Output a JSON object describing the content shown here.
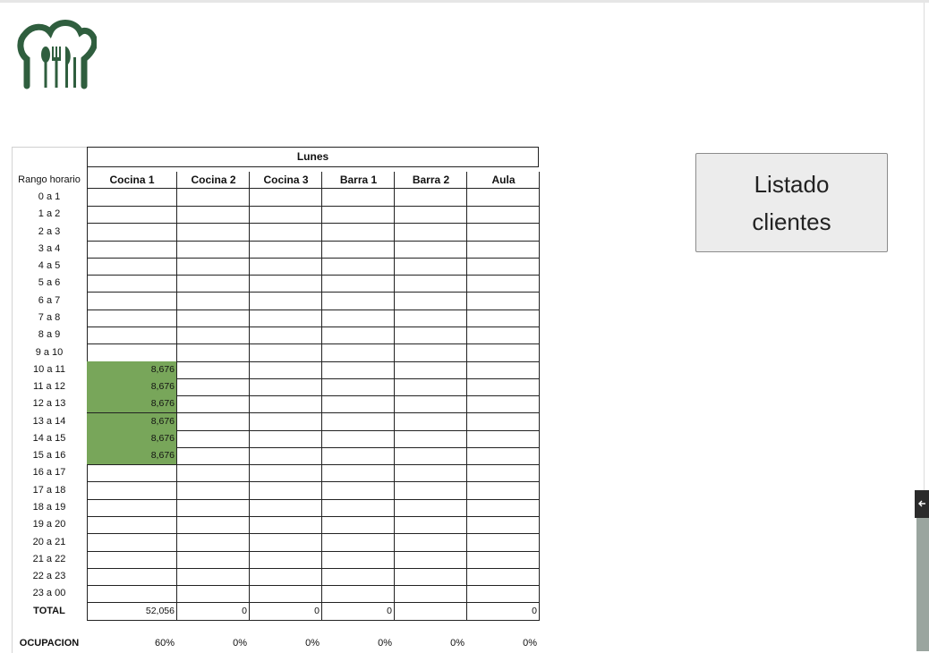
{
  "logo": {
    "icon": "chef-hat-cutlery-icon",
    "color": "#2f5e3e"
  },
  "sheet": {
    "day_header": "Lunes",
    "row_header": "Rango horario",
    "columns": [
      "Cocina 1",
      "Cocina 2",
      "Cocina 3",
      "Barra 1",
      "Barra 2",
      "Aula"
    ],
    "rows": [
      {
        "label": "0 a 1",
        "values": [
          "",
          "",
          "",
          "",
          "",
          ""
        ]
      },
      {
        "label": "1 a 2",
        "values": [
          "",
          "",
          "",
          "",
          "",
          ""
        ]
      },
      {
        "label": "2 a 3",
        "values": [
          "",
          "",
          "",
          "",
          "",
          ""
        ]
      },
      {
        "label": "3 a 4",
        "values": [
          "",
          "",
          "",
          "",
          "",
          ""
        ]
      },
      {
        "label": "4 a 5",
        "values": [
          "",
          "",
          "",
          "",
          "",
          ""
        ]
      },
      {
        "label": "5 a 6",
        "values": [
          "",
          "",
          "",
          "",
          "",
          ""
        ]
      },
      {
        "label": "6 a 7",
        "values": [
          "",
          "",
          "",
          "",
          "",
          ""
        ]
      },
      {
        "label": "7 a 8",
        "values": [
          "",
          "",
          "",
          "",
          "",
          ""
        ]
      },
      {
        "label": "8 a 9",
        "values": [
          "",
          "",
          "",
          "",
          "",
          ""
        ]
      },
      {
        "label": "9 a 10",
        "values": [
          "",
          "",
          "",
          "",
          "",
          ""
        ]
      },
      {
        "label": "10 a 11",
        "values": [
          "8,676",
          "",
          "",
          "",
          "",
          ""
        ]
      },
      {
        "label": "11 a 12",
        "values": [
          "8,676",
          "",
          "",
          "",
          "",
          ""
        ]
      },
      {
        "label": "12 a 13",
        "values": [
          "8,676",
          "",
          "",
          "",
          "",
          ""
        ]
      },
      {
        "label": "13 a 14",
        "values": [
          "8,676",
          "",
          "",
          "",
          "",
          ""
        ]
      },
      {
        "label": "14 a 15",
        "values": [
          "8,676",
          "",
          "",
          "",
          "",
          ""
        ]
      },
      {
        "label": "15 a 16",
        "values": [
          "8,676",
          "",
          "",
          "",
          "",
          ""
        ]
      },
      {
        "label": "16 a 17",
        "values": [
          "",
          "",
          "",
          "",
          "",
          ""
        ]
      },
      {
        "label": "17 a 18",
        "values": [
          "",
          "",
          "",
          "",
          "",
          ""
        ]
      },
      {
        "label": "18 a 19",
        "values": [
          "",
          "",
          "",
          "",
          "",
          ""
        ]
      },
      {
        "label": "19 a 20",
        "values": [
          "",
          "",
          "",
          "",
          "",
          ""
        ]
      },
      {
        "label": "20 a 21",
        "values": [
          "",
          "",
          "",
          "",
          "",
          ""
        ]
      },
      {
        "label": "21 a 22",
        "values": [
          "",
          "",
          "",
          "",
          "",
          ""
        ]
      },
      {
        "label": "22 a 23",
        "values": [
          "",
          "",
          "",
          "",
          "",
          ""
        ]
      },
      {
        "label": "23 a 00",
        "values": [
          "",
          "",
          "",
          "",
          "",
          ""
        ]
      }
    ],
    "total_label": "TOTAL",
    "totals": [
      "52,056",
      "0",
      "0",
      "0",
      "",
      "0"
    ],
    "occupancy_label": "OCUPACION",
    "occupancy": [
      "60%",
      "0%",
      "0%",
      "0%",
      "0%",
      "0%"
    ],
    "highlight_color": "#78a65a"
  },
  "button": {
    "label": "Listado clientes"
  },
  "side_panel": {
    "icon": "arrow-left-icon"
  }
}
